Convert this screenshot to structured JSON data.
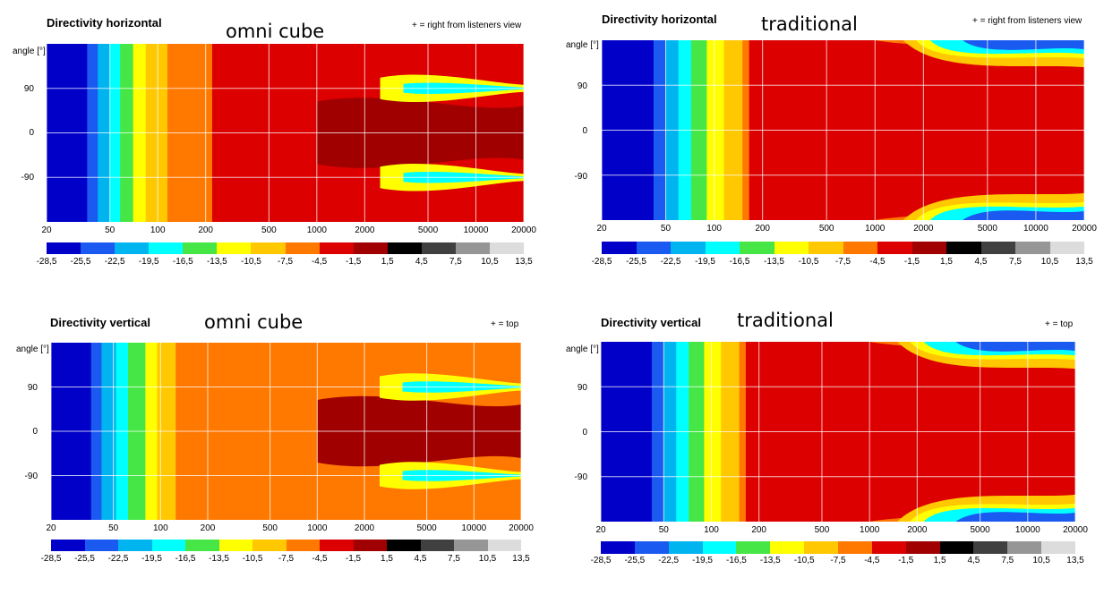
{
  "palette": [
    "#0000c8",
    "#1a5af0",
    "#00b4f0",
    "#00ffff",
    "#46e646",
    "#ffff00",
    "#ffc800",
    "#ff7800",
    "#dc0000",
    "#a00000",
    "#000000",
    "#404040",
    "#969696",
    "#dcdcdc"
  ],
  "chart_data": [
    {
      "type": "heatmap",
      "title": "Directivity horizontal",
      "subtitle": "omni cube",
      "note": "+ = right from listeners view",
      "ylabel": "angle [°]",
      "y_ticks": [
        "90",
        "0",
        "-90"
      ],
      "x_ticks": [
        "20",
        "50",
        "100",
        "200",
        "500",
        "1000",
        "2000",
        "5000",
        "10000",
        "20000"
      ],
      "x_scale": "log",
      "xlim": [
        20,
        20000
      ],
      "ylim": [
        -180,
        180
      ],
      "colorbar_ticks": [
        "-28,5",
        "-25,5",
        "-22,5",
        "-19,5",
        "-16,5",
        "-13,5",
        "-10,5",
        "-7,5",
        "-4,5",
        "-1,5",
        "1,5",
        "4,5",
        "7,5",
        "10,5",
        "13,5"
      ],
      "bands_db": [
        {
          "f_from": 20,
          "f_to": 36,
          "db": -27
        },
        {
          "f_from": 36,
          "f_to": 42,
          "db": -24
        },
        {
          "f_from": 42,
          "f_to": 50,
          "db": -21
        },
        {
          "f_from": 50,
          "f_to": 58,
          "db": -18
        },
        {
          "f_from": 58,
          "f_to": 70,
          "db": -15
        },
        {
          "f_from": 70,
          "f_to": 84,
          "db": -12
        },
        {
          "f_from": 84,
          "f_to": 115,
          "db": -9
        },
        {
          "f_from": 115,
          "f_to": 220,
          "db": -6
        },
        {
          "f_from": 220,
          "f_to": 20000,
          "db": -3
        }
      ]
    },
    {
      "type": "heatmap",
      "title": "Directivity horizontal",
      "subtitle": "traditional",
      "note": "+ = right from listeners view",
      "ylabel": "angle [°]",
      "y_ticks": [
        "90",
        "0",
        "-90"
      ],
      "x_ticks": [
        "20",
        "50",
        "100",
        "200",
        "500",
        "1000",
        "2000",
        "5000",
        "10000",
        "20000"
      ],
      "x_scale": "log",
      "xlim": [
        20,
        20000
      ],
      "ylim": [
        -180,
        180
      ],
      "colorbar_ticks": [
        "-28,5",
        "-25,5",
        "-22,5",
        "-19,5",
        "-16,5",
        "-13,5",
        "-10,5",
        "-7,5",
        "-4,5",
        "-1,5",
        "1,5",
        "4,5",
        "7,5",
        "10,5",
        "13,5"
      ],
      "bands_db": [
        {
          "f_from": 20,
          "f_to": 42,
          "db": -27
        },
        {
          "f_from": 42,
          "f_to": 50,
          "db": -24
        },
        {
          "f_from": 50,
          "f_to": 60,
          "db": -21
        },
        {
          "f_from": 60,
          "f_to": 72,
          "db": -18
        },
        {
          "f_from": 72,
          "f_to": 90,
          "db": -15
        },
        {
          "f_from": 90,
          "f_to": 115,
          "db": -12
        },
        {
          "f_from": 115,
          "f_to": 150,
          "db": -9
        },
        {
          "f_from": 150,
          "f_to": 165,
          "db": -6
        },
        {
          "f_from": 165,
          "f_to": 20000,
          "db": -3
        }
      ]
    },
    {
      "type": "heatmap",
      "title": "Directivity vertical",
      "subtitle": "omni cube",
      "note": "+ = top",
      "ylabel": "angle [°]",
      "y_ticks": [
        "90",
        "0",
        "-90"
      ],
      "x_ticks": [
        "20",
        "50",
        "100",
        "200",
        "500",
        "1000",
        "2000",
        "5000",
        "10000",
        "20000"
      ],
      "x_scale": "log",
      "xlim": [
        20,
        20000
      ],
      "ylim": [
        -180,
        180
      ],
      "colorbar_ticks": [
        "-28,5",
        "-25,5",
        "-22,5",
        "-19,5",
        "-16,5",
        "-13,5",
        "-10,5",
        "-7,5",
        "-4,5",
        "-1,5",
        "1,5",
        "4,5",
        "7,5",
        "10,5",
        "13,5"
      ],
      "bands_db": [
        {
          "f_from": 20,
          "f_to": 36,
          "db": -27
        },
        {
          "f_from": 36,
          "f_to": 42,
          "db": -24
        },
        {
          "f_from": 42,
          "f_to": 52,
          "db": -21
        },
        {
          "f_from": 52,
          "f_to": 62,
          "db": -18
        },
        {
          "f_from": 62,
          "f_to": 80,
          "db": -15
        },
        {
          "f_from": 80,
          "f_to": 95,
          "db": -12
        },
        {
          "f_from": 95,
          "f_to": 125,
          "db": -9
        },
        {
          "f_from": 125,
          "f_to": 20000,
          "db": -6
        }
      ]
    },
    {
      "type": "heatmap",
      "title": "Directivity vertical",
      "subtitle": "traditional",
      "note": "+ = top",
      "ylabel": "angle [°]",
      "y_ticks": [
        "90",
        "0",
        "-90"
      ],
      "x_ticks": [
        "20",
        "50",
        "100",
        "200",
        "500",
        "1000",
        "2000",
        "5000",
        "10000",
        "20000"
      ],
      "x_scale": "log",
      "xlim": [
        20,
        20000
      ],
      "ylim": [
        -180,
        180
      ],
      "colorbar_ticks": [
        "-28,5",
        "-25,5",
        "-22,5",
        "-19,5",
        "-16,5",
        "-13,5",
        "-10,5",
        "-7,5",
        "-4,5",
        "-1,5",
        "1,5",
        "4,5",
        "7,5",
        "10,5",
        "13,5"
      ],
      "bands_db": [
        {
          "f_from": 20,
          "f_to": 42,
          "db": -27
        },
        {
          "f_from": 42,
          "f_to": 50,
          "db": -24
        },
        {
          "f_from": 50,
          "f_to": 60,
          "db": -21
        },
        {
          "f_from": 60,
          "f_to": 72,
          "db": -18
        },
        {
          "f_from": 72,
          "f_to": 90,
          "db": -15
        },
        {
          "f_from": 90,
          "f_to": 115,
          "db": -12
        },
        {
          "f_from": 115,
          "f_to": 150,
          "db": -9
        },
        {
          "f_from": 150,
          "f_to": 165,
          "db": -6
        },
        {
          "f_from": 165,
          "f_to": 20000,
          "db": -3
        }
      ]
    }
  ]
}
